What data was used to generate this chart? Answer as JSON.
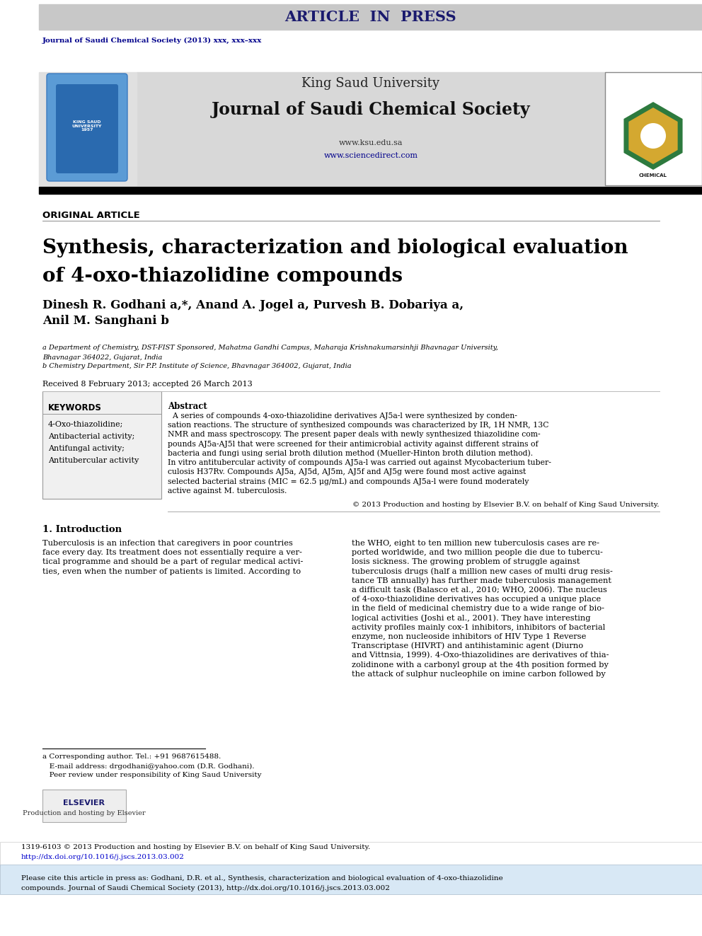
{
  "bg_color": "#ffffff",
  "header_bar_color": "#c8c8c8",
  "header_bar_text": "ARTICLE  IN  PRESS",
  "header_bar_text_color": "#1a1a6e",
  "journal_ref_text": "Journal of Saudi Chemical Society (2013) xxx, xxx–xxx",
  "journal_ref_color": "#00008b",
  "ksu_header_bg": "#d8d8d8",
  "ksu_title": "King Saud University",
  "ksu_journal": "Journal of Saudi Chemical Society",
  "black_bar_color": "#000000",
  "original_article_label": "ORIGINAL ARTICLE",
  "main_title_line1": "Synthesis, characterization and biological evaluation",
  "main_title_line2": "of 4-oxo-thiazolidine compounds",
  "authors_line1": "Dinesh R. Godhani a,*, Anand A. Jogel a, Purvesh B. Dobariya a,",
  "authors_line2": "Anil M. Sanghani b",
  "affil_a": "a Department of Chemistry, DST-FIST Sponsored, Mahatma Gandhi Campus, Maharaja Krishnakumarsinhji Bhavnagar University,",
  "affil_a2": "Bhavnagar 364022, Gujarat, India",
  "affil_b": "b Chemistry Department, Sir P.P. Institute of Science, Bhavnagar 364002, Gujarat, India",
  "received_text": "Received 8 February 2013; accepted 26 March 2013",
  "keywords_title": "KEYWORDS",
  "keywords_list": [
    "4-Oxo-thiazolidine;",
    "Antibacterial activity;",
    "Antifungal activity;",
    "Antitubercular activity"
  ],
  "abstract_title": "Abstract",
  "abstract_lines": [
    "  A series of compounds 4-oxo-thiazolidine derivatives AJ5a-l were synthesized by conden-",
    "sation reactions. The structure of synthesized compounds was characterized by IR, 1H NMR, 13C",
    "NMR and mass spectroscopy. The present paper deals with newly synthesized thiazolidine com-",
    "pounds AJ5a-AJ5l that were screened for their antimicrobial activity against different strains of",
    "bacteria and fungi using serial broth dilution method (Mueller-Hinton broth dilution method).",
    "In vitro antitubercular activity of compounds AJ5a-l was carried out against Mycobacterium tuber-",
    "culosis H37Rv. Compounds AJ5a, AJ5d, AJ5m, AJ5f and AJ5g were found most active against",
    "selected bacterial strains (MIC = 62.5 μg/mL) and compounds AJ5a-l were found moderately",
    "active against M. tuberculosis."
  ],
  "abstract_copyright": "© 2013 Production and hosting by Elsevier B.V. on behalf of King Saud University.",
  "intro_title": "1. Introduction",
  "intro_col1": [
    "Tuberculosis is an infection that caregivers in poor countries",
    "face every day. Its treatment does not essentially require a ver-",
    "tical programme and should be a part of regular medical activi-",
    "ties, even when the number of patients is limited. According to"
  ],
  "intro_col2": [
    "the WHO, eight to ten million new tuberculosis cases are re-",
    "ported worldwide, and two million people die due to tubercu-",
    "losis sickness. The growing problem of struggle against",
    "tuberculosis drugs (half a million new cases of multi drug resis-",
    "tance TB annually) has further made tuberculosis management",
    "a difficult task (Balasco et al., 2010; WHO, 2006). The nucleus",
    "of 4-oxo-thiazolidine derivatives has occupied a unique place",
    "in the field of medicinal chemistry due to a wide range of bio-",
    "logical activities (Joshi et al., 2001). They have interesting",
    "activity profiles mainly cox-1 inhibitors, inhibitors of bacterial",
    "enzyme, non nucleoside inhibitors of HIV Type 1 Reverse",
    "Transcriptase (HIVRT) and antihistaminic agent (Diurno",
    "and Vittnsia, 1999). 4-Oxo-thiazolidines are derivatives of thia-",
    "zolidinone with a carbonyl group at the 4th position formed by",
    "the attack of sulphur nucleophile on imine carbon followed by"
  ],
  "footnote_lines": [
    "a Corresponding author. Tel.: +91 9687615488.",
    "   E-mail address: drgodhani@yahoo.com (D.R. Godhani).",
    "   Peer review under responsibility of King Saud University"
  ],
  "elsevier_label": "ELSEVIER",
  "elsevier_text": "Production and hosting by Elsevier",
  "bottom_issn": "1319-6103 © 2013 Production and hosting by Elsevier B.V. on behalf of King Saud University.",
  "bottom_doi": "http://dx.doi.org/10.1016/j.jscs.2013.03.002",
  "bottom_doi_color": "#0000cc",
  "bottom_cite_lines": [
    "Please cite this article in press as: Godhani, D.R. et al., Synthesis, characterization and biological evaluation of 4-oxo-thiazolidine",
    "compounds. Journal of Saudi Chemical Society (2013), http://dx.doi.org/10.1016/j.jscs.2013.03.002"
  ]
}
